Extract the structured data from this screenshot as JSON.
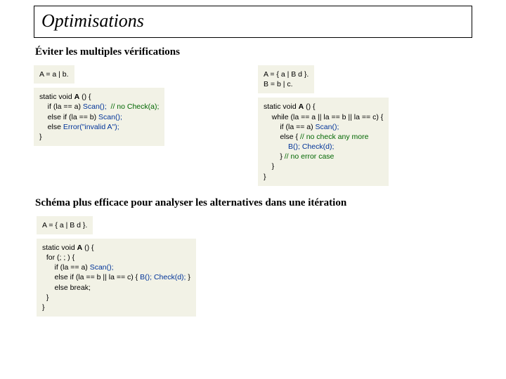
{
  "title": "Optimisations",
  "subtitle1": "Éviter les multiples vérifications",
  "left": {
    "grammar": "A = a | b.",
    "code_l1": "static void ",
    "code_A": "A",
    "code_l1b": " () {",
    "code_l2a": "    if (la == a) ",
    "code_scan1": "Scan();",
    "code_comment1": "  // no Check(a);",
    "code_l3a": "    else if (la == b) ",
    "code_scan2": "Scan();",
    "code_l4a": "    else ",
    "code_err": "Error(\"invalid A\");",
    "code_l5": "}"
  },
  "right": {
    "grammar": "A = { a | B d }.\nB = b | c.",
    "code_l1": "static void ",
    "code_A": "A",
    "code_l1b": " () {",
    "code_l2": "    while (la == a || la == b || la == c) {",
    "code_l3a": "        if (la == a) ",
    "code_scan1": "Scan();",
    "code_l4a": "        else { ",
    "code_comment2": "// no check any more",
    "code_l5a": "            ",
    "code_bcall": "B(); Check(d);",
    "code_l6a": "        } ",
    "code_comment3": "// no error case",
    "code_l7": "    }",
    "code_l8": "}"
  },
  "subtitle2": "Schéma plus efficace pour analyser les alternatives dans une itération",
  "bottom": {
    "grammar": "A = { a | B d }.",
    "code_l1": "static void ",
    "code_A": "A",
    "code_l1b": " () {",
    "code_l2": "  for (; ; ) {",
    "code_l3a": "      if (la == a) ",
    "code_scan1": "Scan();",
    "code_l4a": "      else if (la == b || la == c) { ",
    "code_bcall": "B(); Check(d);",
    "code_l4b": " }",
    "code_l5": "      else break;",
    "code_l6": "  }",
    "code_l7": "}"
  },
  "colors": {
    "box_bg": "#f2f2e6",
    "keyword_blue": "#003399",
    "comment_green": "#006600"
  }
}
